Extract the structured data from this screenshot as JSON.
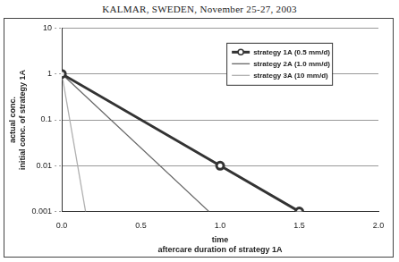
{
  "chart_data": {
    "type": "line",
    "title": "KALMAR, SWEDEN, November 25-27, 2003",
    "x_label": [
      "time",
      "aftercare duration of strategy 1A"
    ],
    "y_label": [
      "actual conc.",
      "initial conc. of strategy 1A"
    ],
    "log": "y",
    "grid": true,
    "legend": "top-right",
    "xlim": [
      0,
      2
    ],
    "xticks": [
      {
        "value": 0,
        "label": "0.0"
      },
      {
        "value": 0.5,
        "label": "0.5"
      },
      {
        "value": 1,
        "label": "1.0"
      },
      {
        "value": 1.5,
        "label": "1.5"
      },
      {
        "value": 2,
        "label": "2.0"
      }
    ],
    "ylim": [
      0.001,
      10
    ],
    "yticks": [
      0.001,
      0.01,
      0.1,
      1,
      10
    ],
    "series": [
      {
        "name": "strategy 1A (0.5 mm/d)",
        "color": "#333333",
        "marker": "circle",
        "line_style": "solid",
        "x": [
          0,
          1.0,
          1.5
        ],
        "values": [
          1,
          0.01,
          0.001
        ]
      },
      {
        "name": "strategy 2A (1.0 mm/d)",
        "color": "#666666",
        "line_style": "solid",
        "x": [
          0,
          0.93
        ],
        "values": [
          1,
          0.001
        ]
      },
      {
        "name": "strategy 3A (10 mm/d)",
        "color": "#b0b0b0",
        "line_style": "solid",
        "x": [
          0,
          0.15
        ],
        "values": [
          1,
          0.001
        ]
      }
    ]
  }
}
